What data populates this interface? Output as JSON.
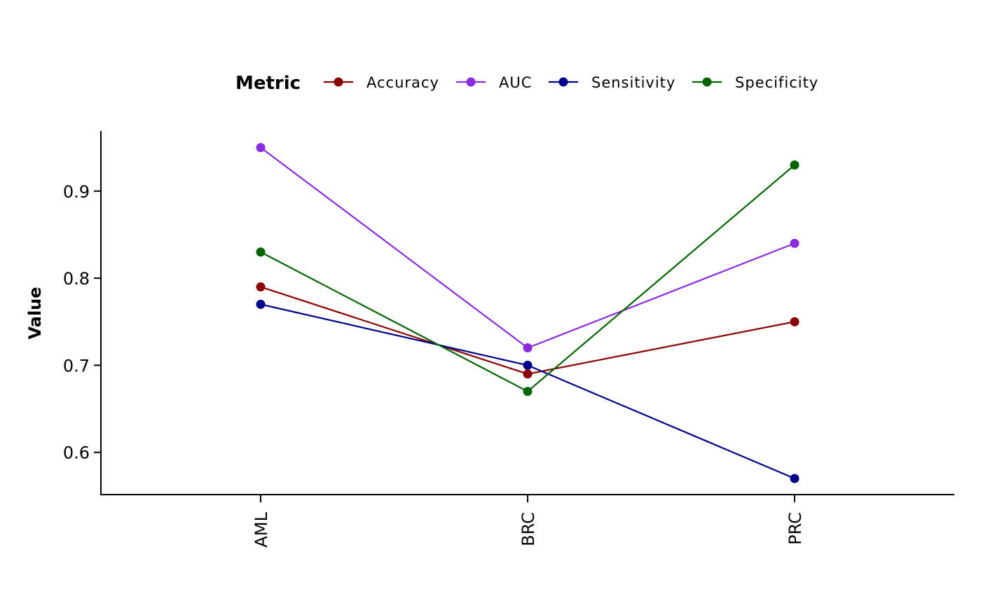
{
  "chart_data": {
    "type": "line",
    "categories": [
      "AML",
      "BRC",
      "PRC"
    ],
    "series": [
      {
        "name": "Accuracy",
        "color": "#8b0000",
        "values": [
          0.79,
          0.69,
          0.75
        ]
      },
      {
        "name": "AUC",
        "color": "#8a2be2",
        "values": [
          0.95,
          0.72,
          0.84
        ]
      },
      {
        "name": "Sensitivity",
        "color": "#00008b",
        "values": [
          0.77,
          0.7,
          0.57
        ]
      },
      {
        "name": "Specificity",
        "color": "#006400",
        "values": [
          0.83,
          0.67,
          0.93
        ]
      }
    ],
    "legend_title": "Metric",
    "legend_position": "top",
    "xlabel": "",
    "ylabel": "Value",
    "ylim": [
      0.5515,
      0.969
    ],
    "yticks": [
      0.6,
      0.7,
      0.8,
      0.9
    ],
    "ytick_labels": [
      "0.6",
      "0.7",
      "0.8",
      "0.9"
    ],
    "grid": false
  }
}
